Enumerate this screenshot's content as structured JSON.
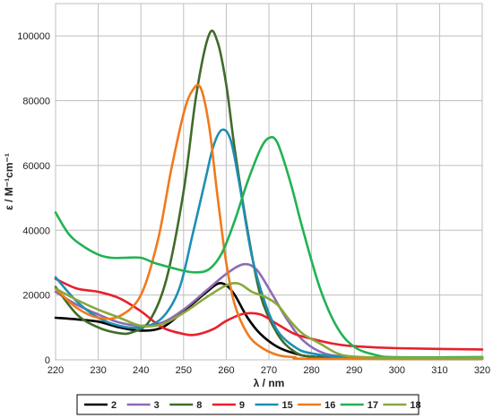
{
  "chart_data": {
    "type": "line",
    "xlabel": "λ / nm",
    "ylabel": "ε / M⁻¹cm⁻¹",
    "xlim": [
      220,
      320
    ],
    "ylim": [
      0,
      110000
    ],
    "xticks": [
      220,
      230,
      240,
      250,
      260,
      270,
      280,
      290,
      300,
      310,
      320
    ],
    "yticks": [
      0,
      20000,
      40000,
      60000,
      80000,
      100000
    ],
    "grid": true,
    "legend_position": "bottom",
    "series": [
      {
        "name": "2",
        "color": "#000000",
        "points": [
          [
            220,
            13000
          ],
          [
            225,
            12500
          ],
          [
            230,
            11800
          ],
          [
            235,
            10000
          ],
          [
            240,
            9000
          ],
          [
            245,
            10000
          ],
          [
            250,
            15000
          ],
          [
            255,
            20500
          ],
          [
            258,
            23500
          ],
          [
            260,
            23000
          ],
          [
            262,
            20000
          ],
          [
            265,
            13000
          ],
          [
            268,
            8000
          ],
          [
            272,
            4000
          ],
          [
            276,
            2000
          ],
          [
            280,
            1000
          ],
          [
            290,
            500
          ],
          [
            300,
            300
          ],
          [
            320,
            300
          ]
        ]
      },
      {
        "name": "3",
        "color": "#8e6bb3",
        "points": [
          [
            220,
            21000
          ],
          [
            225,
            17000
          ],
          [
            230,
            14000
          ],
          [
            235,
            11500
          ],
          [
            240,
            10500
          ],
          [
            245,
            11500
          ],
          [
            250,
            15500
          ],
          [
            255,
            21000
          ],
          [
            260,
            26500
          ],
          [
            264,
            29500
          ],
          [
            267,
            28000
          ],
          [
            270,
            22000
          ],
          [
            274,
            13000
          ],
          [
            278,
            6000
          ],
          [
            283,
            2000
          ],
          [
            290,
            800
          ],
          [
            300,
            500
          ],
          [
            320,
            500
          ]
        ]
      },
      {
        "name": "8",
        "color": "#3f6b2a",
        "points": [
          [
            220,
            22500
          ],
          [
            225,
            14000
          ],
          [
            230,
            10000
          ],
          [
            235,
            8200
          ],
          [
            238,
            8500
          ],
          [
            242,
            12000
          ],
          [
            246,
            25000
          ],
          [
            250,
            52000
          ],
          [
            253,
            82000
          ],
          [
            256,
            100500
          ],
          [
            258,
            98000
          ],
          [
            260,
            85000
          ],
          [
            262,
            65000
          ],
          [
            265,
            40000
          ],
          [
            268,
            20000
          ],
          [
            272,
            8000
          ],
          [
            276,
            2500
          ],
          [
            280,
            1000
          ],
          [
            290,
            500
          ],
          [
            320,
            500
          ]
        ]
      },
      {
        "name": "9",
        "color": "#e8202a",
        "points": [
          [
            220,
            25000
          ],
          [
            225,
            22000
          ],
          [
            230,
            21000
          ],
          [
            235,
            19000
          ],
          [
            240,
            15000
          ],
          [
            245,
            10000
          ],
          [
            250,
            8000
          ],
          [
            253,
            7800
          ],
          [
            257,
            9500
          ],
          [
            260,
            12000
          ],
          [
            264,
            14200
          ],
          [
            268,
            14000
          ],
          [
            272,
            11000
          ],
          [
            276,
            8000
          ],
          [
            280,
            6500
          ],
          [
            285,
            5000
          ],
          [
            290,
            4200
          ],
          [
            300,
            3600
          ],
          [
            320,
            3200
          ]
        ]
      },
      {
        "name": "15",
        "color": "#1d8fb3",
        "points": [
          [
            220,
            25500
          ],
          [
            225,
            18000
          ],
          [
            230,
            13000
          ],
          [
            235,
            10500
          ],
          [
            240,
            10000
          ],
          [
            245,
            13000
          ],
          [
            249,
            22000
          ],
          [
            252,
            38000
          ],
          [
            255,
            55000
          ],
          [
            257,
            66000
          ],
          [
            259,
            71000
          ],
          [
            261,
            68000
          ],
          [
            263,
            55000
          ],
          [
            266,
            32000
          ],
          [
            269,
            18000
          ],
          [
            272,
            9000
          ],
          [
            276,
            4000
          ],
          [
            280,
            2000
          ],
          [
            290,
            800
          ],
          [
            320,
            800
          ]
        ]
      },
      {
        "name": "16",
        "color": "#f07a1c",
        "points": [
          [
            220,
            22000
          ],
          [
            225,
            16000
          ],
          [
            230,
            13000
          ],
          [
            235,
            13500
          ],
          [
            240,
            20000
          ],
          [
            244,
            37000
          ],
          [
            247,
            58000
          ],
          [
            250,
            76000
          ],
          [
            252,
            83000
          ],
          [
            254,
            84000
          ],
          [
            256,
            72000
          ],
          [
            258,
            50000
          ],
          [
            260,
            30000
          ],
          [
            262,
            17000
          ],
          [
            265,
            8000
          ],
          [
            268,
            4000
          ],
          [
            272,
            1500
          ],
          [
            276,
            800
          ],
          [
            280,
            300
          ],
          [
            320,
            300
          ]
        ]
      },
      {
        "name": "17",
        "color": "#20b352",
        "points": [
          [
            220,
            45500
          ],
          [
            223,
            39000
          ],
          [
            226,
            35500
          ],
          [
            230,
            32500
          ],
          [
            233,
            31500
          ],
          [
            236,
            31500
          ],
          [
            240,
            31500
          ],
          [
            243,
            30000
          ],
          [
            247,
            28500
          ],
          [
            250,
            27500
          ],
          [
            253,
            27000
          ],
          [
            256,
            28000
          ],
          [
            259,
            33000
          ],
          [
            262,
            43000
          ],
          [
            265,
            55000
          ],
          [
            268,
            65000
          ],
          [
            270,
            68500
          ],
          [
            272,
            67000
          ],
          [
            275,
            55000
          ],
          [
            278,
            40000
          ],
          [
            282,
            22000
          ],
          [
            286,
            10000
          ],
          [
            290,
            4000
          ],
          [
            295,
            1500
          ],
          [
            300,
            800
          ],
          [
            320,
            800
          ]
        ]
      },
      {
        "name": "18",
        "color": "#8aa83b",
        "points": [
          [
            220,
            22000
          ],
          [
            225,
            18500
          ],
          [
            230,
            15500
          ],
          [
            235,
            13000
          ],
          [
            240,
            10500
          ],
          [
            245,
            11000
          ],
          [
            250,
            14500
          ],
          [
            255,
            19000
          ],
          [
            260,
            23000
          ],
          [
            263,
            23500
          ],
          [
            266,
            21000
          ],
          [
            269,
            19500
          ],
          [
            272,
            17000
          ],
          [
            275,
            12000
          ],
          [
            278,
            8000
          ],
          [
            282,
            5000
          ],
          [
            286,
            2000
          ],
          [
            290,
            1000
          ],
          [
            300,
            600
          ],
          [
            320,
            600
          ]
        ]
      }
    ]
  }
}
